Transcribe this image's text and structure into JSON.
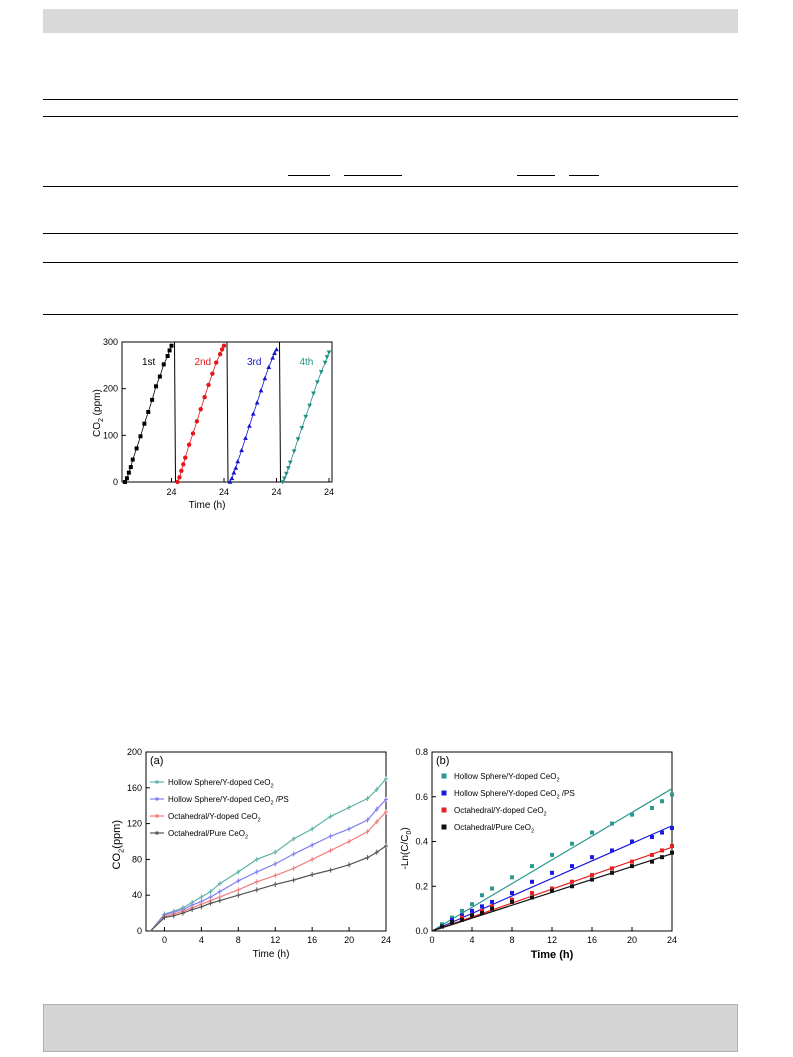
{
  "figure_cycles": {
    "chart_data": {
      "type": "scatter",
      "ylabel_base": "CO",
      "ylabel_sub": "2",
      "ylabel_unit": " (ppm)",
      "xlabel": "Time (h)",
      "ylim": [
        0,
        300
      ],
      "yticks": [
        "0",
        "100",
        "200",
        "300"
      ],
      "xtick_label": "24",
      "series": [
        {
          "name": "1st",
          "color": "#000000",
          "marker": "square",
          "values": [
            [
              0,
              0
            ],
            [
              1,
              8
            ],
            [
              2,
              20
            ],
            [
              3,
              32
            ],
            [
              4,
              48
            ],
            [
              6,
              72
            ],
            [
              8,
              98
            ],
            [
              10,
              125
            ],
            [
              12,
              150
            ],
            [
              14,
              176
            ],
            [
              16,
              205
            ],
            [
              18,
              226
            ],
            [
              20,
              252
            ],
            [
              22,
              270
            ],
            [
              23,
              282
            ],
            [
              24,
              292
            ]
          ]
        },
        {
          "name": "2nd",
          "color": "#e8161a",
          "marker": "circle",
          "values": [
            [
              0,
              0
            ],
            [
              1,
              10
            ],
            [
              2,
              24
            ],
            [
              3,
              38
            ],
            [
              4,
              52
            ],
            [
              6,
              80
            ],
            [
              8,
              104
            ],
            [
              10,
              130
            ],
            [
              12,
              156
            ],
            [
              14,
              182
            ],
            [
              16,
              208
            ],
            [
              18,
              232
            ],
            [
              20,
              256
            ],
            [
              22,
              274
            ],
            [
              23,
              284
            ],
            [
              24,
              292
            ]
          ]
        },
        {
          "name": "3rd",
          "color": "#1414d0",
          "marker": "triangle-up",
          "values": [
            [
              0,
              0
            ],
            [
              1,
              8
            ],
            [
              2,
              20
            ],
            [
              3,
              30
            ],
            [
              4,
              44
            ],
            [
              6,
              68
            ],
            [
              8,
              94
            ],
            [
              10,
              120
            ],
            [
              12,
              146
            ],
            [
              14,
              170
            ],
            [
              16,
              196
            ],
            [
              18,
              222
            ],
            [
              20,
              246
            ],
            [
              22,
              266
            ],
            [
              23,
              276
            ],
            [
              24,
              284
            ]
          ]
        },
        {
          "name": "4th",
          "color": "#1f8f86",
          "marker": "triangle-down",
          "values": [
            [
              0,
              0
            ],
            [
              1,
              8
            ],
            [
              2,
              18
            ],
            [
              3,
              30
            ],
            [
              4,
              42
            ],
            [
              6,
              66
            ],
            [
              8,
              92
            ],
            [
              10,
              116
            ],
            [
              12,
              140
            ],
            [
              14,
              164
            ],
            [
              16,
              190
            ],
            [
              18,
              214
            ],
            [
              20,
              236
            ],
            [
              22,
              256
            ],
            [
              23,
              268
            ],
            [
              24,
              278
            ]
          ]
        }
      ]
    }
  },
  "figure_a": {
    "chart_data": {
      "type": "line",
      "panel_label": "(a)",
      "ylabel_base": "CO",
      "ylabel_sub": "2",
      "ylabel_unit": "(ppm)",
      "xlabel": "Time (h)",
      "xlim": [
        -2,
        24
      ],
      "ylim": [
        0,
        200
      ],
      "xticks": [
        "0",
        "4",
        "8",
        "12",
        "16",
        "20",
        "24"
      ],
      "yticks": [
        "0",
        "40",
        "80",
        "120",
        "160",
        "200"
      ],
      "series": [
        {
          "name_base": "Hollow Sphere/Y-doped CeO",
          "name_sub": "2",
          "name_tail": "",
          "color": "#5fb3a8",
          "x": [
            -1.5,
            0,
            1,
            2,
            3,
            4,
            5,
            6,
            8,
            10,
            12,
            14,
            16,
            18,
            20,
            22,
            23,
            24
          ],
          "y": [
            0,
            19,
            22,
            26,
            32,
            38,
            44,
            53,
            66,
            80,
            88,
            103,
            114,
            128,
            138,
            148,
            158,
            170
          ]
        },
        {
          "name_base": "Hollow Sphere/Y-doped CeO",
          "name_sub": "2",
          "name_tail": " /PS",
          "color": "#7f7fef",
          "x": [
            -1.5,
            0,
            1,
            2,
            3,
            4,
            5,
            6,
            8,
            10,
            12,
            14,
            16,
            18,
            20,
            22,
            23,
            24
          ],
          "y": [
            0,
            18,
            21,
            24,
            29,
            33,
            38,
            44,
            56,
            66,
            75,
            86,
            96,
            106,
            114,
            124,
            136,
            147
          ]
        },
        {
          "name_base": "Octahedral/Y-doped CeO",
          "name_sub": "2",
          "name_tail": "",
          "color": "#ef7f7f",
          "x": [
            -1.5,
            0,
            1,
            2,
            3,
            4,
            5,
            6,
            8,
            10,
            12,
            14,
            16,
            18,
            20,
            22,
            23,
            24
          ],
          "y": [
            0,
            16,
            19,
            22,
            26,
            30,
            34,
            38,
            46,
            55,
            62,
            70,
            80,
            90,
            100,
            111,
            122,
            133
          ]
        },
        {
          "name_base": "Octahedral/Pure CeO",
          "name_sub": "2",
          "name_tail": "",
          "color": "#555555",
          "x": [
            -1.5,
            0,
            1,
            2,
            3,
            4,
            5,
            6,
            8,
            10,
            12,
            14,
            16,
            18,
            20,
            22,
            23,
            24
          ],
          "y": [
            0,
            15,
            17,
            20,
            24,
            27,
            31,
            34,
            40,
            46,
            52,
            57,
            63,
            68,
            74,
            82,
            88,
            95
          ]
        }
      ]
    }
  },
  "figure_b": {
    "chart_data": {
      "type": "scatter",
      "panel_label": "(b)",
      "ylabel_base": "-Ln(C/C",
      "ylabel_sub": "0",
      "ylabel_unit": ")",
      "xlabel": "Time (h)",
      "xlim": [
        0,
        24
      ],
      "ylim": [
        0,
        0.8
      ],
      "xticks": [
        "0",
        "4",
        "8",
        "12",
        "16",
        "20",
        "24"
      ],
      "yticks": [
        "0.0",
        "0.2",
        "0.4",
        "0.6",
        "0.8"
      ],
      "series": [
        {
          "name_base": "Hollow Sphere/Y-doped CeO",
          "name_sub": "2",
          "name_tail": "",
          "color": "#2a9a8e",
          "slope": 0.0265,
          "x": [
            1,
            2,
            3,
            4,
            5,
            6,
            8,
            10,
            12,
            14,
            16,
            18,
            20,
            22,
            23,
            24
          ],
          "y": [
            0.03,
            0.06,
            0.09,
            0.12,
            0.16,
            0.19,
            0.24,
            0.29,
            0.34,
            0.39,
            0.44,
            0.48,
            0.52,
            0.55,
            0.58,
            0.61
          ]
        },
        {
          "name_base": "Hollow Sphere/Y-doped CeO",
          "name_sub": "2",
          "name_tail": " /PS",
          "color": "#1a1ae0",
          "slope": 0.0196,
          "x": [
            1,
            2,
            3,
            4,
            5,
            6,
            8,
            10,
            12,
            14,
            16,
            18,
            20,
            22,
            23,
            24
          ],
          "y": [
            0.02,
            0.05,
            0.07,
            0.09,
            0.11,
            0.13,
            0.17,
            0.22,
            0.26,
            0.29,
            0.33,
            0.36,
            0.4,
            0.42,
            0.44,
            0.46
          ]
        },
        {
          "name_base": "Octahedral/Y-doped CeO",
          "name_sub": "2",
          "name_tail": "",
          "color": "#e8201e",
          "slope": 0.0156,
          "x": [
            1,
            2,
            3,
            4,
            5,
            6,
            8,
            10,
            12,
            14,
            16,
            18,
            20,
            22,
            23,
            24
          ],
          "y": [
            0.02,
            0.04,
            0.06,
            0.07,
            0.09,
            0.11,
            0.14,
            0.17,
            0.19,
            0.22,
            0.25,
            0.28,
            0.31,
            0.34,
            0.36,
            0.38
          ]
        },
        {
          "name_base": "Octahedral/Pure CeO",
          "name_sub": "2",
          "name_tail": "",
          "color": "#111111",
          "slope": 0.0144,
          "x": [
            1,
            2,
            3,
            4,
            5,
            6,
            8,
            10,
            12,
            14,
            16,
            18,
            20,
            22,
            23,
            24
          ],
          "y": [
            0.02,
            0.04,
            0.05,
            0.07,
            0.08,
            0.1,
            0.13,
            0.15,
            0.18,
            0.2,
            0.23,
            0.26,
            0.29,
            0.31,
            0.33,
            0.35
          ]
        }
      ]
    }
  }
}
